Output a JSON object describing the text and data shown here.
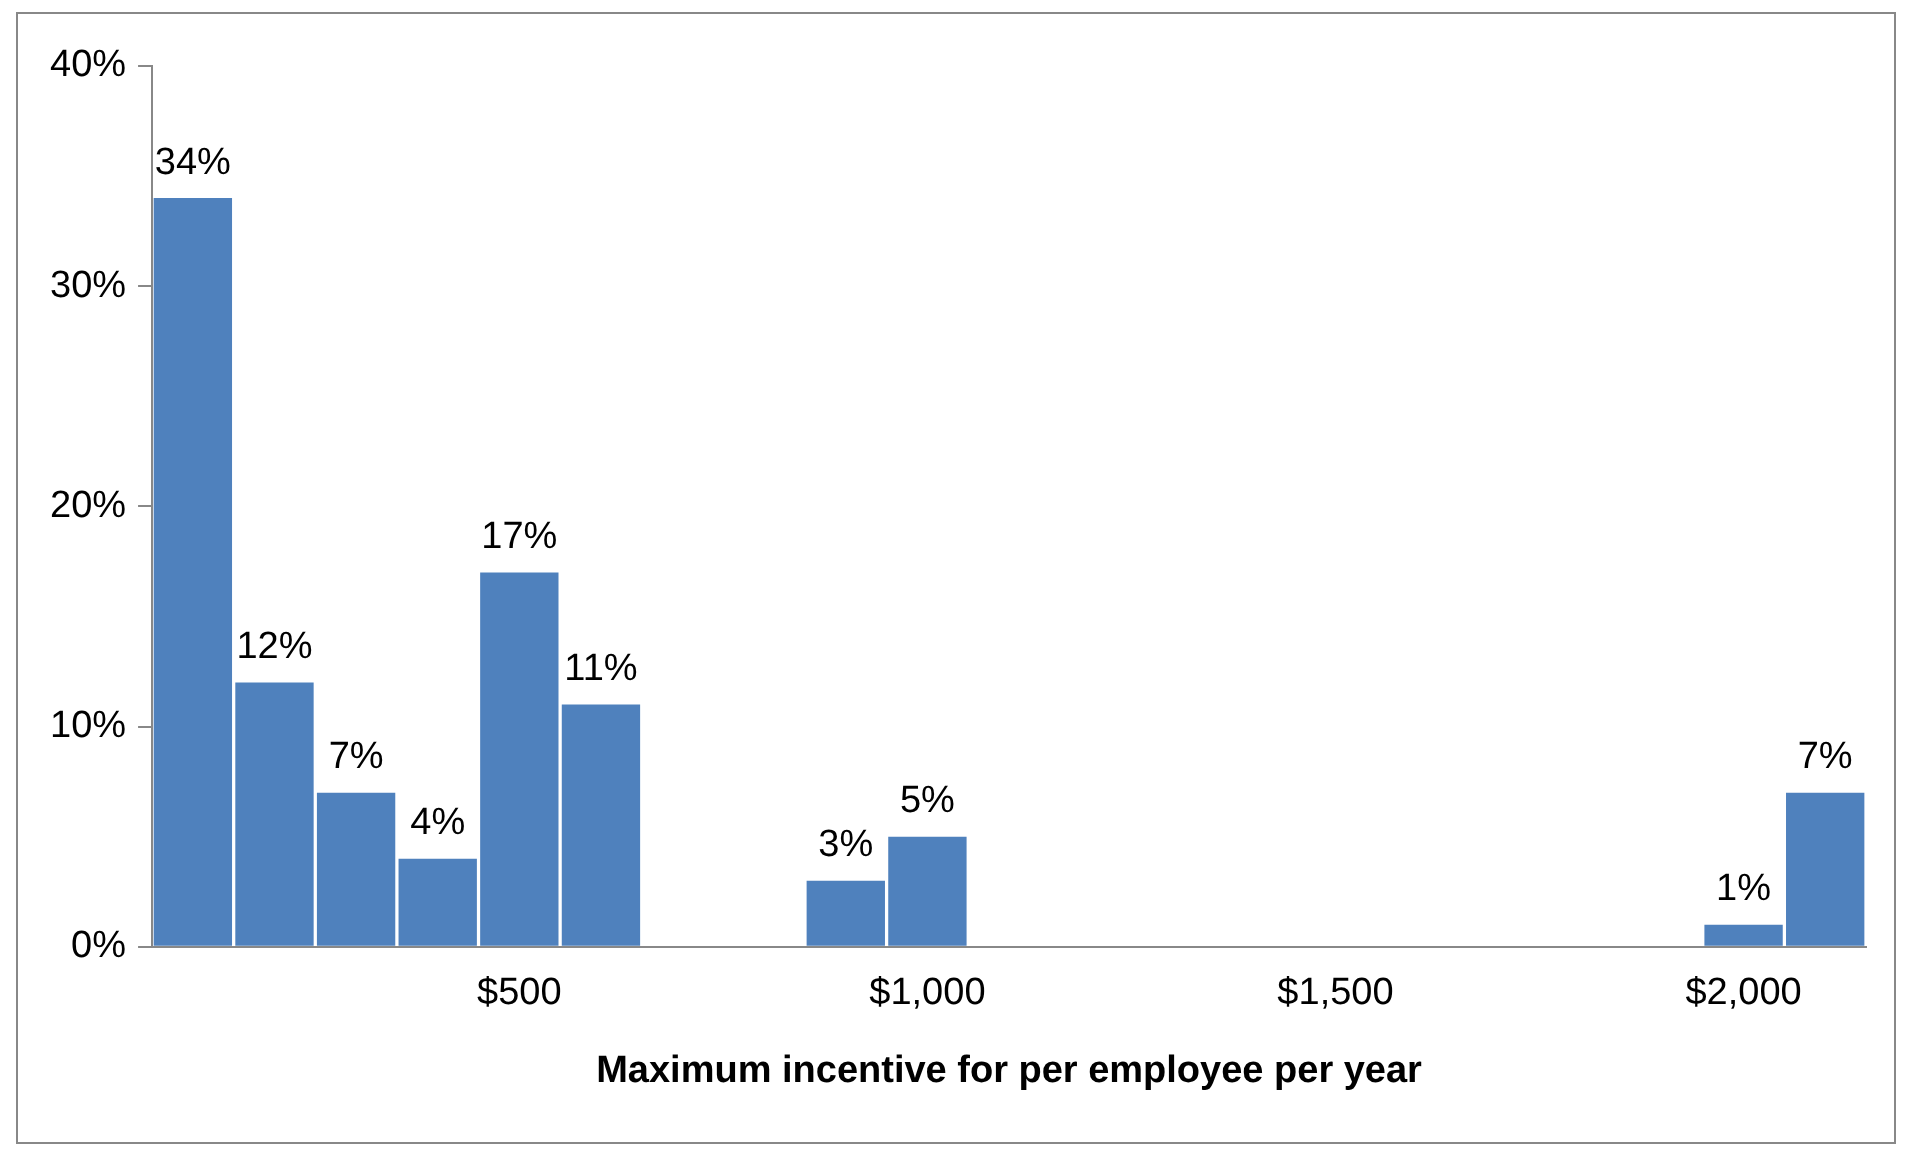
{
  "chart_data": {
    "type": "bar",
    "xlabel": "Maximum incentive for per employee per year",
    "categories": [
      null,
      null,
      null,
      null,
      "$500",
      null,
      null,
      null,
      null,
      "$1,000",
      null,
      null,
      null,
      null,
      "$1,500",
      null,
      null,
      null,
      null,
      "$2,000",
      null
    ],
    "values": [
      34,
      12,
      7,
      4,
      17,
      11,
      0,
      0,
      3,
      5,
      0,
      0,
      0,
      0,
      0,
      0,
      0,
      0,
      0,
      1,
      7
    ],
    "value_labels": [
      "34%",
      "12%",
      "7%",
      "4%",
      "17%",
      "11%",
      null,
      null,
      "3%",
      "5%",
      null,
      null,
      null,
      null,
      null,
      null,
      null,
      null,
      null,
      "1%",
      "7%"
    ],
    "color": "#4f81bd",
    "ylim": [
      0,
      40
    ],
    "yticks": [
      {
        "value": 0,
        "label": "0%"
      },
      {
        "value": 10,
        "label": "10%"
      },
      {
        "value": 20,
        "label": "20%"
      },
      {
        "value": 30,
        "label": "30%"
      },
      {
        "value": 40,
        "label": "40%"
      }
    ],
    "grid": false,
    "legend": false
  }
}
